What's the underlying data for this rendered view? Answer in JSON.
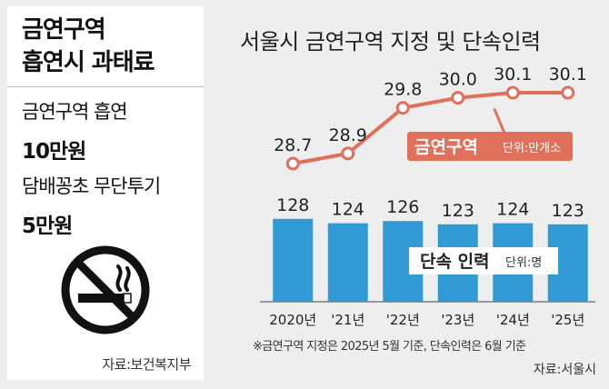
{
  "left_panel": {
    "title_line1": "금연구역",
    "title_line2": "흡연시 과태료",
    "items": [
      {
        "label": "금연구역 흡연",
        "value": "10만원"
      },
      {
        "label": "담배꽁초 무단투기",
        "value": "5만원"
      }
    ],
    "icon": "no-smoking-icon",
    "source": "자료:보건복지부"
  },
  "chart_data": {
    "type": "bar+line",
    "title": "서울시 금연구역 지정 및 단속인력",
    "categories": [
      "2020년",
      "'21년",
      "'22년",
      "'23년",
      "'24년",
      "'25년"
    ],
    "series": [
      {
        "name": "단속 인력",
        "unit": "단위:명",
        "type": "bar",
        "color": "#2f9ad3",
        "values": [
          128,
          124,
          126,
          123,
          124,
          123
        ]
      },
      {
        "name": "금연구역",
        "unit": "단위:만개소",
        "type": "line",
        "color": "#e0705a",
        "values": [
          28.7,
          28.9,
          29.8,
          30.0,
          30.1,
          30.1
        ]
      }
    ],
    "bar_labels": [
      "128",
      "124",
      "126",
      "123",
      "124",
      "123"
    ],
    "line_labels": [
      "28.7",
      "28.9",
      "29.8",
      "30.0",
      "30.1",
      "30.1"
    ],
    "footnote": "※금연구역 지정은 2025년 5월 기준, 단속인력은 6월 기준",
    "source": "자료:서울시"
  }
}
